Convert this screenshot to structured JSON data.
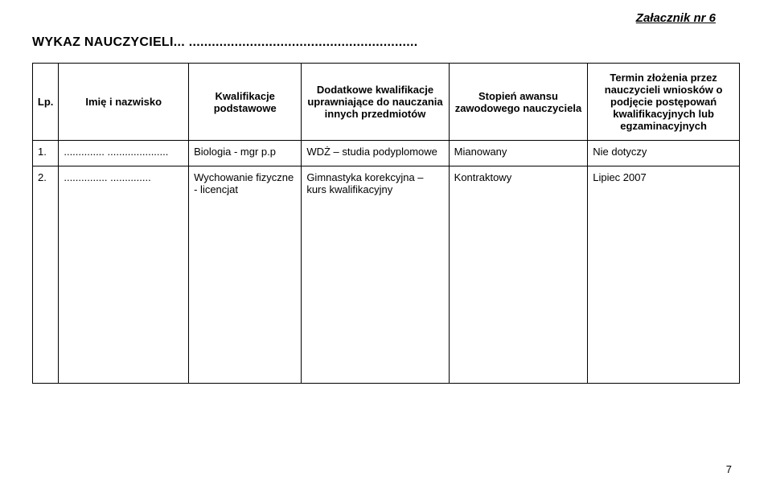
{
  "attachment_label": "Załacznik nr 6",
  "title": "WYKAZ NAUCZYCIELI... ............................................................",
  "headers": {
    "lp": "Lp.",
    "name": "Imię i nazwisko",
    "kw": "Kwalifikacje podstawowe",
    "dk": "Dodatkowe kwalifikacje uprawniające do nauczania innych przedmiotów",
    "st": "Stopień awansu zawodowego nauczyciela",
    "tz": "Termin złożenia przez nauczycieli wniosków o podjęcie postępowań kwalifikacyjnych lub egzaminacyjnych"
  },
  "rows": [
    {
      "lp": "1.",
      "name": "..............  .....................",
      "kw": "Biologia - mgr p.p",
      "dk": "WDŻ – studia podyplomowe",
      "st": "Mianowany",
      "tz": "Nie dotyczy"
    },
    {
      "lp": "2.",
      "name": "............... ..............",
      "kw": "Wychowanie fizyczne - licencjat",
      "dk": "Gimnastyka korekcyjna – kurs kwalifikacyjny",
      "st": "Kontraktowy",
      "tz": "Lipiec 2007"
    }
  ],
  "page_number": "7"
}
